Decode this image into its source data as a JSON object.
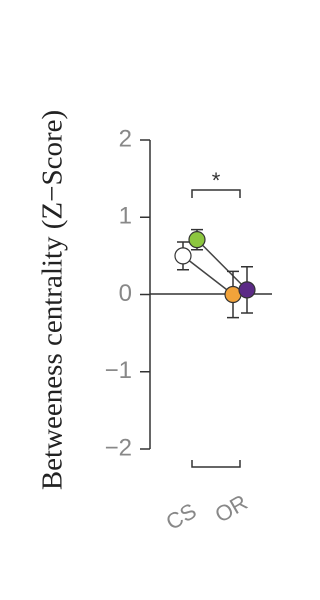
{
  "chart_data": {
    "type": "dot",
    "y_label": "Betweeness centrality (Z−Score)",
    "categories": [
      "CS",
      "OR"
    ],
    "annotation": "*",
    "ylim": [
      -2,
      2
    ],
    "yticks": [
      2,
      1,
      0,
      {
        "value": -1,
        "label": "−1"
      },
      {
        "value": -2,
        "label": "−2"
      }
    ],
    "series": [
      {
        "colors": [
          "#ffffff",
          "#f2a33a"
        ],
        "values": [
          0.5,
          0
        ],
        "errors": [
          0.18,
          0.3
        ]
      },
      {
        "colors": [
          "#8cc63f",
          "#5b2a86"
        ],
        "values": [
          0.71,
          0.06
        ],
        "errors": [
          0.13,
          0.3
        ]
      }
    ]
  }
}
